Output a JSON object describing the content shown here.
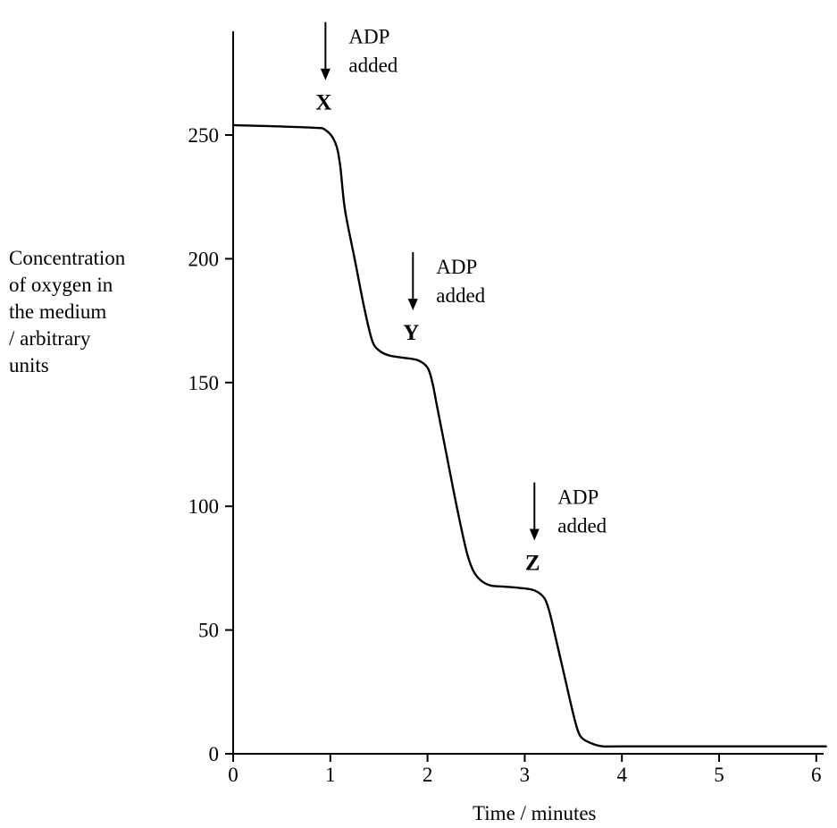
{
  "chart_data": {
    "type": "line",
    "xlabel": "Time / minutes",
    "ylabel_lines": [
      "Concentration",
      "of oxygen in",
      "the medium",
      "/ arbitrary",
      "units"
    ],
    "xlim": [
      0,
      6.2
    ],
    "ylim": [
      0,
      270
    ],
    "xticks": [
      0,
      1,
      2,
      3,
      4,
      5,
      6
    ],
    "yticks": [
      0,
      50,
      100,
      150,
      200,
      250
    ],
    "grid": false,
    "series": [
      {
        "x": [
          0,
          0.8,
          0.95,
          1.05,
          1.1,
          1.15,
          1.25,
          1.35,
          1.43,
          1.5,
          1.6,
          1.75,
          1.9,
          2.0,
          2.05,
          2.1,
          2.2,
          2.3,
          2.4,
          2.47,
          2.55,
          2.65,
          2.8,
          2.95,
          3.1,
          3.2,
          3.25,
          3.3,
          3.4,
          3.5,
          3.55,
          3.6,
          3.7,
          3.8,
          4.0,
          5.0,
          6.1
        ],
        "y": [
          254,
          253,
          252,
          247,
          238,
          220,
          200,
          180,
          167,
          163,
          161,
          160,
          159,
          156,
          150,
          140,
          120,
          100,
          82,
          74,
          70,
          68,
          67.5,
          67,
          66,
          63,
          58,
          50,
          33,
          16,
          9,
          6,
          4,
          3,
          3,
          3,
          3
        ]
      }
    ],
    "annotations": [
      {
        "marker": "X",
        "text_lines": [
          "ADP",
          "added"
        ],
        "x": 0.95,
        "y": 253
      },
      {
        "marker": "Y",
        "text_lines": [
          "ADP",
          "added"
        ],
        "x": 1.85,
        "y": 160
      },
      {
        "marker": "Z",
        "text_lines": [
          "ADP",
          "added"
        ],
        "x": 3.1,
        "y": 67
      }
    ]
  }
}
